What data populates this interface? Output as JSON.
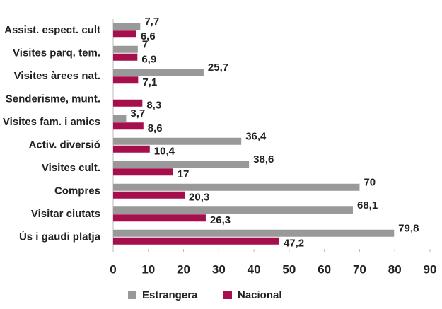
{
  "chart_data": {
    "type": "bar",
    "orientation": "horizontal",
    "categories": [
      "Assist. espect. cult",
      "Visites parq. tem.",
      "Visites àrees nat.",
      "Senderisme, munt.",
      "Visites fam. i amics",
      "Activ. diversió",
      "Visites cult.",
      "Compres",
      "Visitar ciutats",
      "Ús i gaudi platja"
    ],
    "series": [
      {
        "name": "Estrangera",
        "color": "#999999",
        "values": [
          7.7,
          7,
          25.7,
          null,
          3.7,
          36.4,
          38.6,
          70,
          68.1,
          79.8
        ],
        "value_labels": [
          "7,7",
          "7",
          "25,7",
          null,
          "3,7",
          "36,4",
          "38,6",
          "70",
          "68,1",
          "79,8"
        ]
      },
      {
        "name": "Nacional",
        "color": "#a50f4b",
        "values": [
          6.6,
          6.9,
          7.1,
          8.3,
          8.6,
          10.4,
          17,
          20.3,
          26.3,
          47.2
        ],
        "value_labels": [
          "6,6",
          "6,9",
          "7,1",
          "8,3",
          "8,6",
          "10,4",
          "17",
          "20,3",
          "26,3",
          "47,2"
        ]
      }
    ],
    "xlim": [
      0,
      90
    ],
    "xticks": [
      0,
      10,
      20,
      30,
      40,
      50,
      60,
      70,
      80,
      90
    ],
    "legend": "bottom"
  }
}
